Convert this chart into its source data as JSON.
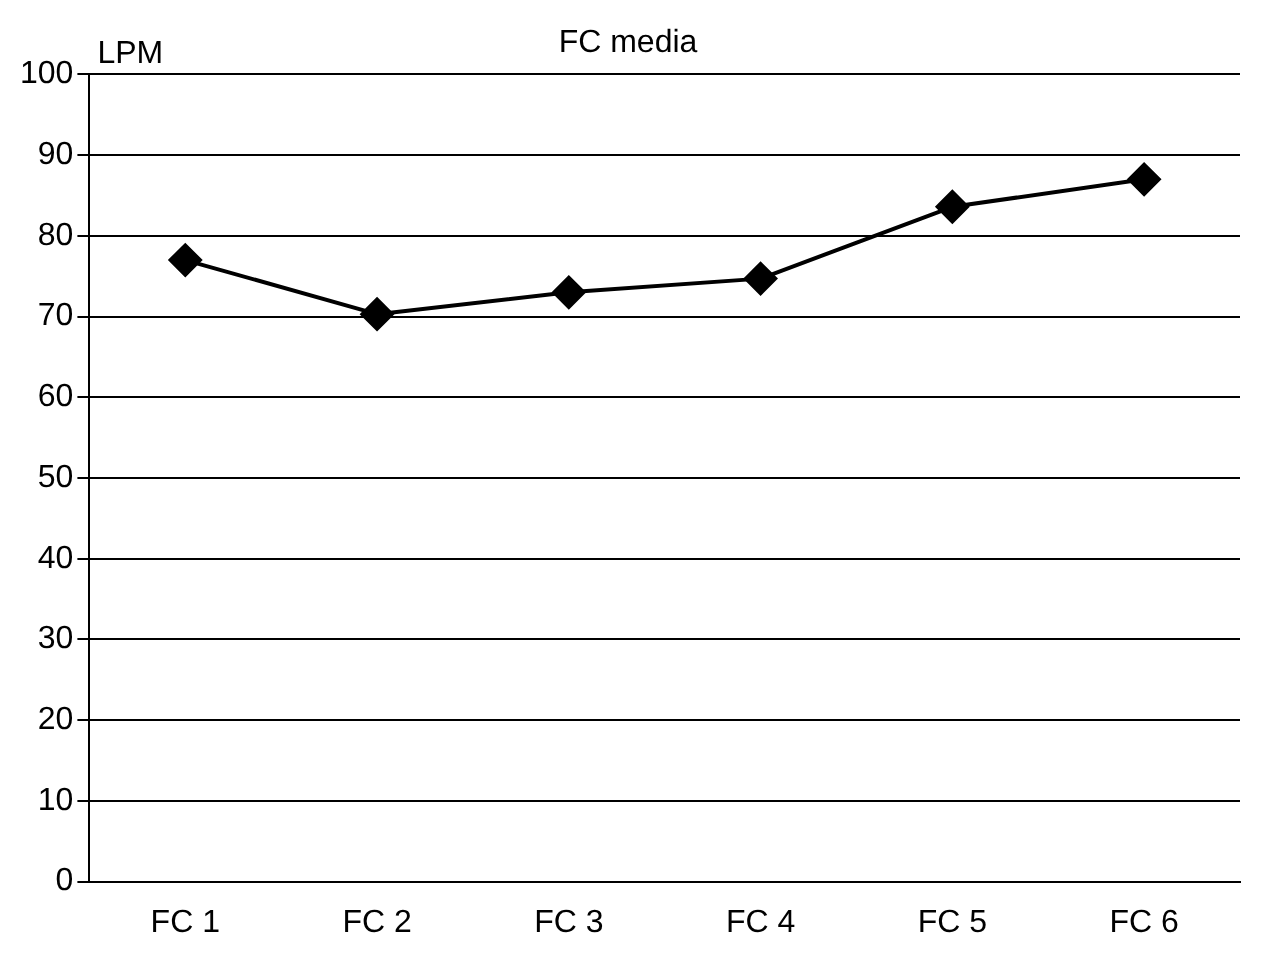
{
  "chart_data": {
    "type": "line",
    "title": "FC media",
    "ylabel": "LPM",
    "categories": [
      "FC 1",
      "FC 2",
      "FC 3",
      "FC 4",
      "FC 5",
      "FC 6"
    ],
    "series": [
      {
        "color": "#000000",
        "values": [
          77,
          70.3,
          73,
          74.7,
          83.6,
          87
        ]
      }
    ],
    "ylim": [
      0,
      100
    ],
    "yticks": [
      0,
      10,
      20,
      30,
      40,
      50,
      60,
      70,
      80,
      90,
      100
    ],
    "grid": "y",
    "legend": false,
    "marker": "diamond",
    "line_style": "solid"
  }
}
